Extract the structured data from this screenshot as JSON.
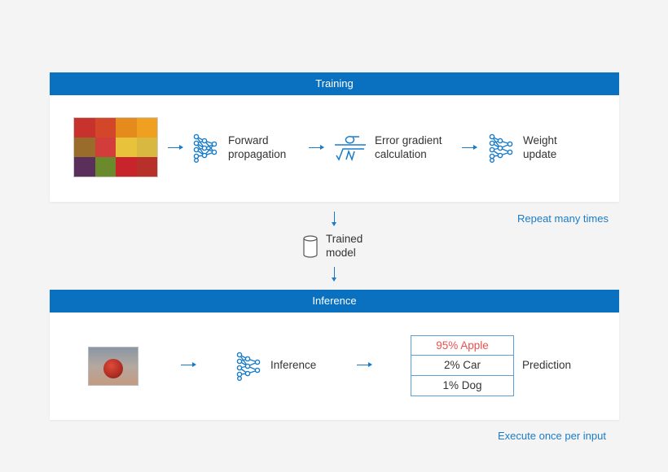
{
  "training": {
    "title": "Training",
    "steps": [
      "Forward propagation",
      "Error gradient calculation",
      "Weight update"
    ],
    "step_lines": [
      [
        "Forward",
        "propagation"
      ],
      [
        "Error gradient",
        "calculation"
      ],
      [
        "Weight",
        "update"
      ]
    ],
    "repeat_note": "Repeat many times"
  },
  "model": {
    "label_lines": [
      "Trained",
      "model"
    ],
    "icon": "cylinder-icon"
  },
  "inference": {
    "title": "Inference",
    "step": "Inference",
    "predictions": [
      "95% Apple",
      "2% Car",
      "1% Dog"
    ],
    "prediction_label": "Prediction",
    "note": "Execute once per input"
  },
  "colors": {
    "header": "#0a71c0",
    "accent": "#1a7cc9",
    "highlight": "#e8524f"
  }
}
